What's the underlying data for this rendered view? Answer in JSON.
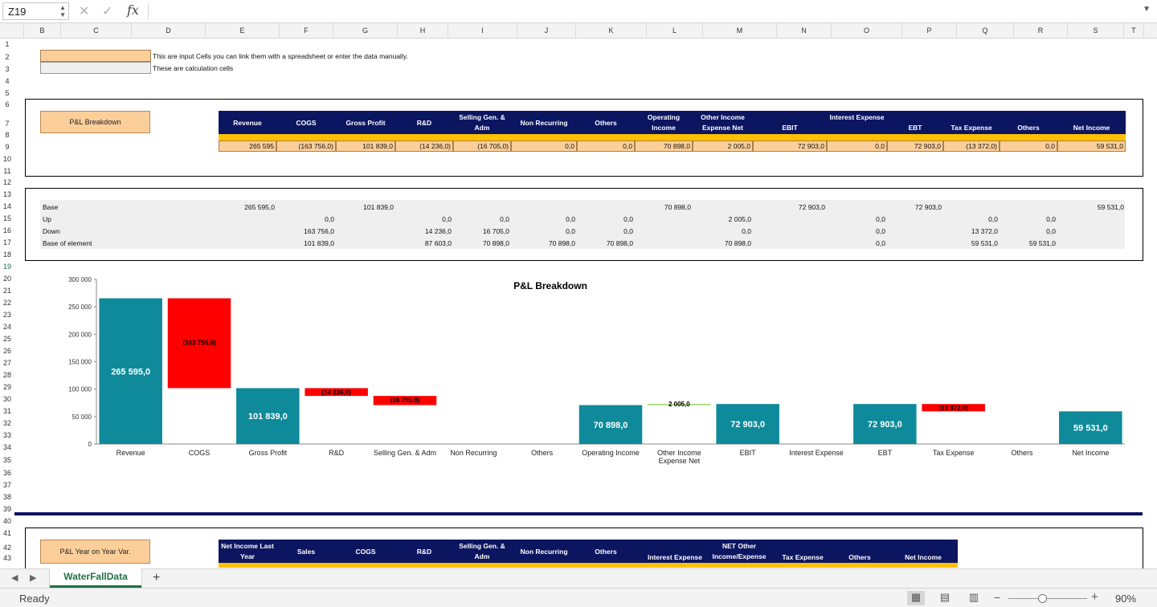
{
  "formula_bar": {
    "name_box": "Z19",
    "cancel_icon": "✕",
    "enter_icon": "✓",
    "fx_label": "fx"
  },
  "columns": [
    "B",
    "C",
    "D",
    "E",
    "F",
    "G",
    "H",
    "I",
    "J",
    "K",
    "L",
    "M",
    "N",
    "O",
    "P",
    "Q",
    "R",
    "S",
    "T"
  ],
  "rows": [
    "1",
    "2",
    "3",
    "4",
    "5",
    "6",
    "7",
    "8",
    "9",
    "10",
    "11",
    "12",
    "13",
    "14",
    "15",
    "16",
    "17",
    "18",
    "19",
    "20",
    "21",
    "22",
    "23",
    "24",
    "25",
    "26",
    "27",
    "28",
    "29",
    "30",
    "31",
    "32",
    "33",
    "34",
    "35",
    "36",
    "37",
    "38",
    "39",
    "40",
    "41",
    "42",
    "43"
  ],
  "selected_row": "19",
  "legend": {
    "input_text": "This are input Cells you can link them with a spreadsheet or enter the data manually.",
    "calc_text": "These are calculation cells",
    "input_color": "#fccf9a",
    "calc_color": "#efefef"
  },
  "pl_table": {
    "button_label": "P&L Breakdown",
    "headers": [
      "Revenue",
      "COGS",
      "Gross Profit",
      "R&D",
      "Selling Gen. & Adm",
      "Non Recurring",
      "Others",
      "Operating Income",
      "Other Income Expense Net",
      "EBIT",
      "Interest Expense",
      "EBT",
      "Tax Expense",
      "Others",
      "Net Income"
    ],
    "values": [
      "265 595",
      "(163 756,0)",
      "101 839,0",
      "(14 236,0)",
      "(16 705,0)",
      "0,0",
      "0,0",
      "70 898,0",
      "2 005,0",
      "72 903,0",
      "0,0",
      "72 903,0",
      "(13 372,0)",
      "0,0",
      "59 531,0"
    ]
  },
  "calc_table": {
    "labels": [
      "Base",
      "Up",
      "Down",
      "Base of element"
    ],
    "base": [
      "265 595,0",
      "",
      "101 839,0",
      "",
      "",
      "",
      "",
      "70 898,0",
      "",
      "72 903,0",
      "",
      "72 903,0",
      "",
      "",
      "59 531,0"
    ],
    "up": [
      "",
      "0,0",
      "",
      "0,0",
      "0,0",
      "0,0",
      "0,0",
      "",
      "2 005,0",
      "",
      "0,0",
      "",
      "0,0",
      "0,0",
      ""
    ],
    "down": [
      "",
      "163 756,0",
      "",
      "14 236,0",
      "16 705,0",
      "0,0",
      "0,0",
      "",
      "0,0",
      "",
      "0,0",
      "",
      "13 372,0",
      "0,0",
      ""
    ],
    "base_of_element": [
      "",
      "101 839,0",
      "",
      "87 603,0",
      "70 898,0",
      "70 898,0",
      "70 898,0",
      "",
      "70 898,0",
      "",
      "0,0",
      "",
      "59 531,0",
      "59 531,0",
      ""
    ]
  },
  "chart_data": {
    "type": "bar",
    "title": "P&L Breakdown",
    "categories": [
      "Revenue",
      "COGS",
      "Gross Profit",
      "R&D",
      "Selling Gen. & Adm",
      "Non Recurring",
      "Others",
      "Operating Income",
      "Other Income Expense Net",
      "EBIT",
      "Interest Expense",
      "EBT",
      "Tax Expense",
      "Others",
      "Net Income"
    ],
    "base": [
      265595,
      0,
      101839,
      0,
      0,
      0,
      0,
      70898,
      0,
      72903,
      0,
      72903,
      0,
      0,
      59531
    ],
    "base_of_element": [
      0,
      101839,
      0,
      87603,
      70898,
      70898,
      70898,
      0,
      70898,
      0,
      0,
      0,
      59531,
      59531,
      0
    ],
    "down": [
      0,
      163756,
      0,
      14236,
      16705,
      0,
      0,
      0,
      0,
      0,
      0,
      0,
      13372,
      0,
      0
    ],
    "up": [
      0,
      0,
      0,
      0,
      0,
      0,
      0,
      0,
      2005,
      0,
      0,
      0,
      0,
      0,
      0
    ],
    "labels": [
      "265 595,0",
      "(163 756,0)",
      "101 839,0",
      "(14 236,0)",
      "(16 705,0)",
      "",
      "",
      "70 898,0",
      "2 005,0",
      "72 903,0",
      "",
      "72 903,0",
      "(13 372,0)",
      "",
      "59 531,0"
    ],
    "ylim": [
      0,
      300000
    ],
    "yticks": [
      "0",
      "50 000",
      "100 000",
      "150 000",
      "200 000",
      "250 000",
      "300 000"
    ],
    "colors": {
      "base": "#0e8a9a",
      "down": "#ff0000",
      "up": "#92d050"
    },
    "grid": false,
    "legend": "none"
  },
  "yoy_table": {
    "button_label": "P&L Year on Year Var.",
    "headers": [
      "Net Income Last Year",
      "Sales",
      "COGS",
      "R&D",
      "Selling Gen. & Adm",
      "Non Recurring",
      "Others",
      "Interest Expense",
      "NET Other Income/Expense",
      "Tax Expense",
      "Others",
      "Net Income"
    ]
  },
  "sheet_tab": {
    "name": "WaterFallData",
    "add_label": "+"
  },
  "status": {
    "ready": "Ready",
    "zoom": "90%"
  }
}
